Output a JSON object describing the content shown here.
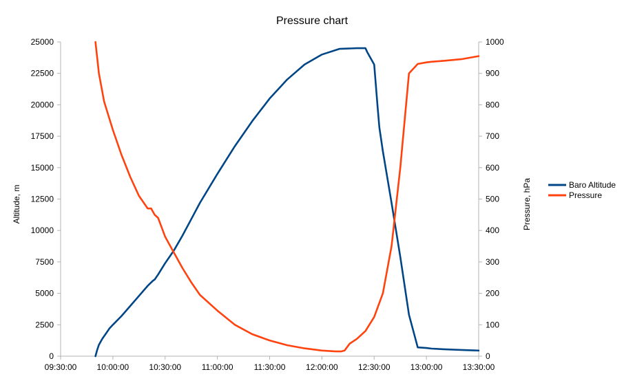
{
  "chart_data": {
    "type": "line",
    "title": "Pressure chart",
    "xlabel": "",
    "ylabel": "Altitude, m",
    "y2label": "Pressure, hPa",
    "x_ticks": [
      "09:30:00",
      "10:00:00",
      "10:30:00",
      "11:00:00",
      "11:30:00",
      "12:00:00",
      "12:30:00",
      "13:00:00",
      "13:30:00"
    ],
    "xlim_minutes": [
      570,
      810
    ],
    "ylim": [
      0,
      25000
    ],
    "y_ticks": [
      "0",
      "2500",
      "5000",
      "7500",
      "10000",
      "12500",
      "15000",
      "17500",
      "20000",
      "22500",
      "25000"
    ],
    "y2lim": [
      0,
      1000
    ],
    "y2_ticks": [
      "0",
      "100",
      "200",
      "300",
      "400",
      "500",
      "600",
      "700",
      "800",
      "900",
      "1000"
    ],
    "grid": false,
    "legend_position": "right",
    "series": [
      {
        "name": "Baro Altitude",
        "color": "#004586",
        "axis": "left",
        "x_minutes": [
          590,
          591,
          592,
          594,
          596,
          598,
          600,
          605,
          610,
          615,
          620,
          623,
          624,
          626,
          630,
          635,
          640,
          645,
          650,
          660,
          670,
          680,
          690,
          700,
          710,
          720,
          730,
          740,
          745,
          746,
          750,
          751,
          752,
          753,
          755,
          760,
          765,
          770,
          775,
          780,
          783,
          790,
          800,
          810
        ],
        "values": [
          0,
          500,
          900,
          1400,
          1800,
          2200,
          2500,
          3200,
          4000,
          4800,
          5600,
          6000,
          6100,
          6500,
          7400,
          8400,
          9600,
          10900,
          12200,
          14500,
          16700,
          18700,
          20500,
          22000,
          23200,
          24000,
          24450,
          24500,
          24500,
          24200,
          23200,
          21500,
          19800,
          18200,
          16300,
          12200,
          7900,
          3300,
          700,
          650,
          600,
          550,
          500,
          450
        ]
      },
      {
        "name": "Pressure",
        "color": "#ff420e",
        "axis": "right",
        "x_minutes": [
          590,
          592,
          595,
          600,
          605,
          610,
          615,
          620,
          622,
          623,
          624,
          626,
          630,
          635,
          640,
          645,
          650,
          660,
          670,
          680,
          690,
          700,
          710,
          720,
          728,
          731,
          733,
          736,
          740,
          745,
          750,
          755,
          760,
          765,
          770,
          775,
          780,
          783,
          790,
          800,
          810
        ],
        "values": [
          1000,
          900,
          810,
          720,
          640,
          570,
          510,
          470,
          470,
          460,
          450,
          440,
          380,
          330,
          280,
          235,
          195,
          145,
          100,
          70,
          50,
          35,
          25,
          18,
          15,
          15,
          18,
          40,
          55,
          80,
          125,
          200,
          350,
          600,
          900,
          930,
          935,
          937,
          940,
          945,
          955
        ]
      }
    ]
  }
}
